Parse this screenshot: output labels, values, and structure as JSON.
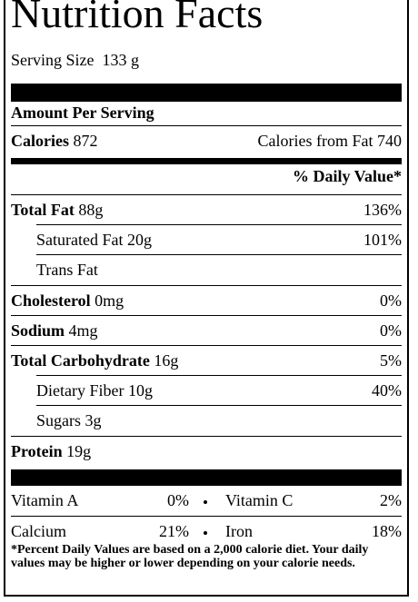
{
  "header": {
    "title": "Nutrition Facts",
    "serving_label": "Serving Size",
    "serving_value": "133 g"
  },
  "amount_per_serving": "Amount Per Serving",
  "calories": {
    "label": "Calories",
    "value": "872",
    "from_fat": "Calories from Fat 740"
  },
  "daily_value_header": "% Daily Value*",
  "nutrients": [
    {
      "name": "Total Fat",
      "amount": "88g",
      "dv": "136%"
    },
    {
      "name": "Saturated Fat",
      "amount": "20g",
      "dv": "101%"
    },
    {
      "name": "Trans Fat"
    },
    {
      "name": "Cholesterol",
      "amount": "0mg",
      "dv": "0%"
    },
    {
      "name": "Sodium",
      "amount": "4mg",
      "dv": "0%"
    },
    {
      "name": "Total Carbohydrate",
      "amount": "16g",
      "dv": "5%"
    },
    {
      "name": "Dietary Fiber",
      "amount": "10g",
      "dv": "40%"
    },
    {
      "name": "Sugars",
      "amount": "3g"
    },
    {
      "name": "Protein",
      "amount": "19g"
    }
  ],
  "vitamins": [
    [
      {
        "name": "Vitamin A",
        "dv": "0%"
      },
      {
        "name": "Vitamin C",
        "dv": "2%"
      }
    ],
    [
      {
        "name": "Calcium",
        "dv": "21%"
      },
      {
        "name": "Iron",
        "dv": "18%"
      }
    ]
  ],
  "footnote": "*Percent Daily Values are based on a 2,000 calorie diet. Your daily values may be higher or lower depending on your calorie needs."
}
